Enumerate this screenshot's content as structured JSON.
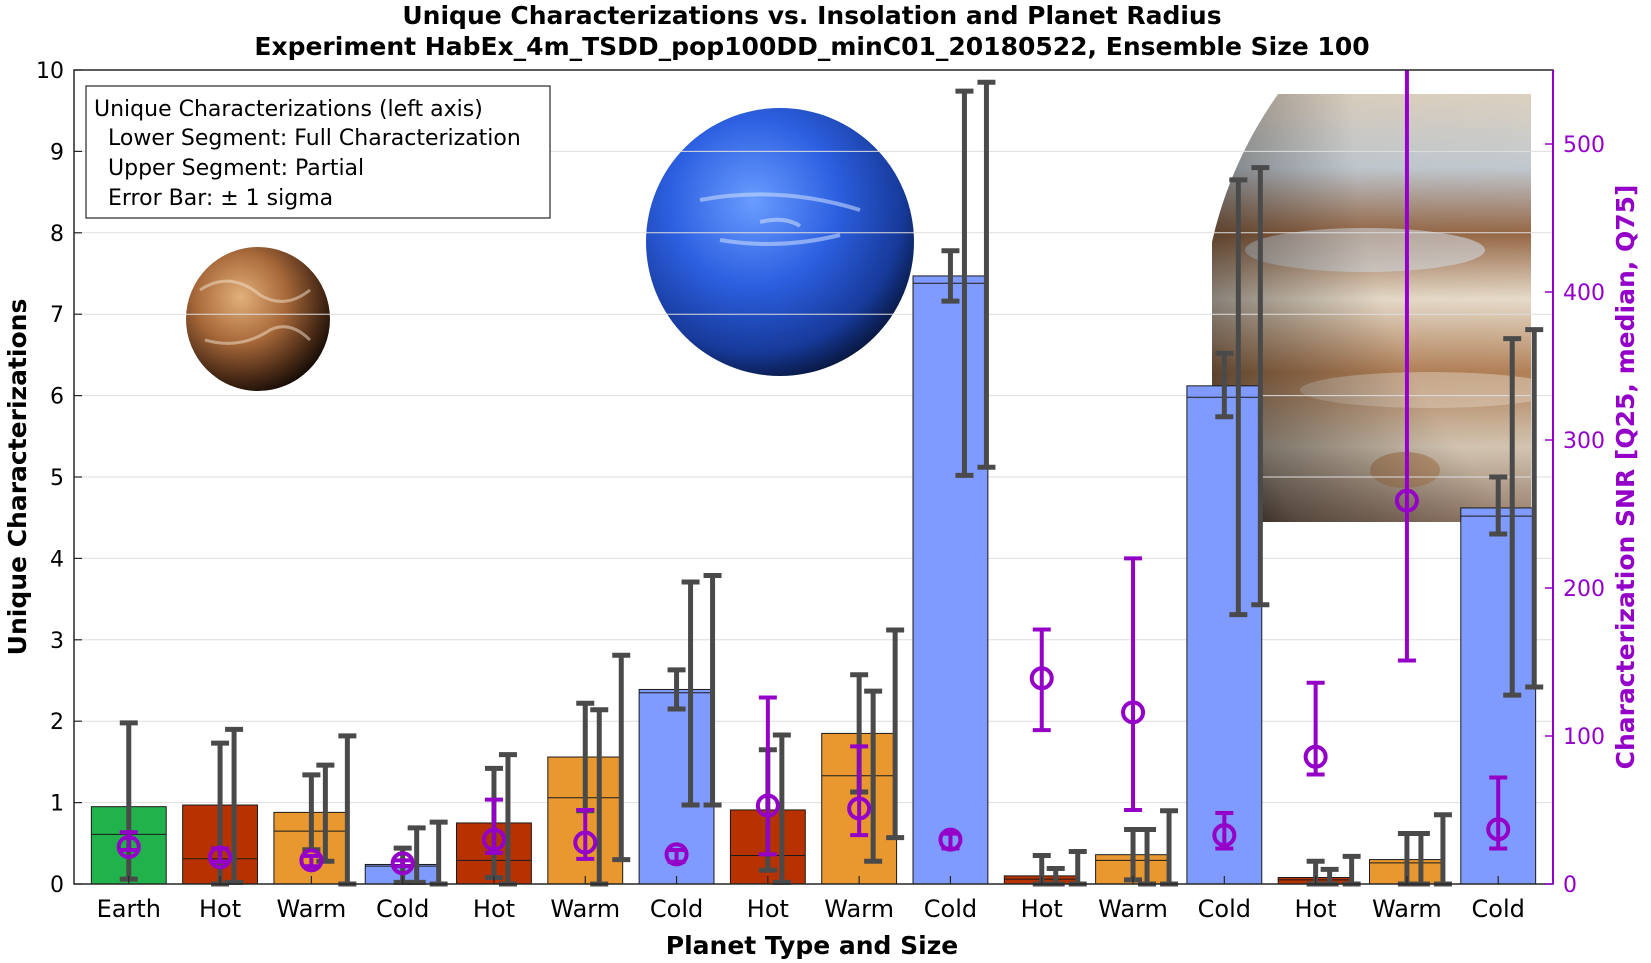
{
  "chart_data": {
    "type": "bar",
    "title": "Unique Characterizations vs. Insolation and Planet Radius",
    "subtitle": "Experiment HabEx_4m_TSDD_pop100DD_minC01_20180522, Ensemble Size 100",
    "xlabel": "Planet Type and Size",
    "ylabel": "Unique Characterizations",
    "ylabel_right": "Characterization SNR [Q25, median, Q75]",
    "ylim": [
      0,
      10
    ],
    "ylim_right": [
      0,
      550
    ],
    "yticks": [
      0,
      1,
      2,
      3,
      4,
      5,
      6,
      7,
      8,
      9,
      10
    ],
    "yticks_right": [
      0,
      100,
      200,
      300,
      400,
      500
    ],
    "grid": true,
    "legend": {
      "placement": "top-left",
      "lines": [
        "Unique Characterizations (left axis)",
        "Lower Segment: Full Characterization",
        "Upper Segment: Partial",
        "Error Bar: ± 1 sigma"
      ]
    },
    "colors": {
      "earth": "#22b24c",
      "hot": "#b83200",
      "warm": "#e8982e",
      "cold": "#7f9bff",
      "snr": "#9400c8",
      "errorbar": "#4a4a4a"
    },
    "categories": [
      {
        "label": "Earth",
        "x": 1,
        "kind": "earth",
        "total": 0.95,
        "full": 0.61,
        "err_full": [
          0.06,
          1.98
        ],
        "err_total": null,
        "snr": [
          23,
          25,
          35
        ]
      },
      {
        "label": "Hot",
        "x": 2,
        "kind": "hot",
        "total": 0.97,
        "full": 0.31,
        "err_full": [
          0.0,
          1.73
        ],
        "err_total": [
          0.02,
          1.9
        ],
        "snr": [
          15,
          18,
          24
        ]
      },
      {
        "label": "Warm",
        "x": 3,
        "kind": "warm",
        "total": 0.88,
        "full": 0.65,
        "err_full": [
          0.42,
          1.34
        ],
        "err_total": [
          0.28,
          1.46
        ],
        "err_extra": [
          0.0,
          1.82
        ],
        "snr": [
          12,
          16,
          19
        ]
      },
      {
        "label": "Cold",
        "x": 4,
        "kind": "cold",
        "total": 0.24,
        "full": 0.22,
        "err_full": [
          0.02,
          0.44
        ],
        "err_total": [
          0.02,
          0.69
        ],
        "err_extra": [
          0.0,
          0.76
        ],
        "snr": [
          12,
          14,
          16
        ]
      },
      {
        "label": "Hot",
        "x": 5,
        "kind": "hot",
        "total": 0.75,
        "full": 0.29,
        "err_full": [
          0.08,
          1.42
        ],
        "err_total": [
          0.0,
          1.59
        ],
        "snr": [
          21,
          30,
          57
        ]
      },
      {
        "label": "Warm",
        "x": 6,
        "kind": "warm",
        "total": 1.56,
        "full": 1.06,
        "err_full": [
          0.9,
          2.22
        ],
        "err_total": [
          0.0,
          2.14
        ],
        "err_extra": [
          0.3,
          2.81
        ],
        "snr": [
          17,
          28,
          50
        ]
      },
      {
        "label": "Cold",
        "x": 7,
        "kind": "cold",
        "total": 2.39,
        "full": 2.35,
        "err_full": [
          2.15,
          2.63
        ],
        "err_total": [
          0.97,
          3.71
        ],
        "err_extra": [
          0.97,
          3.79
        ],
        "snr": [
          15,
          20,
          23
        ]
      },
      {
        "label": "Hot",
        "x": 8,
        "kind": "hot",
        "total": 0.91,
        "full": 0.35,
        "err_full": [
          0.17,
          1.65
        ],
        "err_total": [
          0.02,
          1.83
        ],
        "snr": [
          20,
          53,
          126
        ]
      },
      {
        "label": "Warm",
        "x": 9,
        "kind": "warm",
        "total": 1.85,
        "full": 1.33,
        "err_full": [
          1.13,
          2.57
        ],
        "err_total": [
          0.28,
          2.37
        ],
        "err_extra": [
          0.57,
          3.12
        ],
        "snr": [
          33,
          51,
          93
        ]
      },
      {
        "label": "Cold",
        "x": 10,
        "kind": "cold",
        "total": 7.47,
        "full": 7.38,
        "err_full": [
          7.16,
          7.78
        ],
        "err_total": [
          5.02,
          9.74
        ],
        "err_extra": [
          5.12,
          9.85
        ],
        "snr": [
          24,
          30,
          34
        ]
      },
      {
        "label": "Hot",
        "x": 11,
        "kind": "hot",
        "total": 0.1,
        "full": 0.06,
        "err_full": [
          0.0,
          0.35
        ],
        "err_total": [
          0.0,
          0.19
        ],
        "err_extra": [
          0.0,
          0.4
        ],
        "snr": [
          104,
          139,
          172
        ]
      },
      {
        "label": "Warm",
        "x": 12,
        "kind": "warm",
        "total": 0.36,
        "full": 0.29,
        "err_full": [
          0.05,
          0.67
        ],
        "err_total": [
          0.0,
          0.67
        ],
        "err_extra": [
          0.0,
          0.9
        ],
        "snr": [
          50,
          116,
          220
        ]
      },
      {
        "label": "Cold",
        "x": 13,
        "kind": "cold",
        "total": 6.12,
        "full": 5.98,
        "err_full": [
          5.74,
          6.52
        ],
        "err_total": [
          3.31,
          8.65
        ],
        "err_extra": [
          3.43,
          8.8
        ],
        "snr": [
          24,
          33,
          48
        ]
      },
      {
        "label": "Hot",
        "x": 14,
        "kind": "hot",
        "total": 0.08,
        "full": 0.05,
        "err_full": [
          0.0,
          0.28
        ],
        "err_total": [
          0.0,
          0.18
        ],
        "err_extra": [
          0.0,
          0.34
        ],
        "snr": [
          74,
          86,
          136
        ]
      },
      {
        "label": "Warm",
        "x": 15,
        "kind": "warm",
        "total": 0.3,
        "full": 0.26,
        "err_full": [
          0.0,
          0.62
        ],
        "err_total": [
          0.0,
          0.62
        ],
        "err_extra": [
          0.0,
          0.85
        ],
        "snr": [
          151,
          259,
          560
        ]
      },
      {
        "label": "Cold",
        "x": 16,
        "kind": "cold",
        "total": 4.62,
        "full": 4.52,
        "err_full": [
          4.3,
          5.0
        ],
        "err_total": [
          2.32,
          6.7
        ],
        "err_extra": [
          2.42,
          6.81
        ],
        "snr": [
          24,
          37,
          72
        ]
      }
    ]
  }
}
